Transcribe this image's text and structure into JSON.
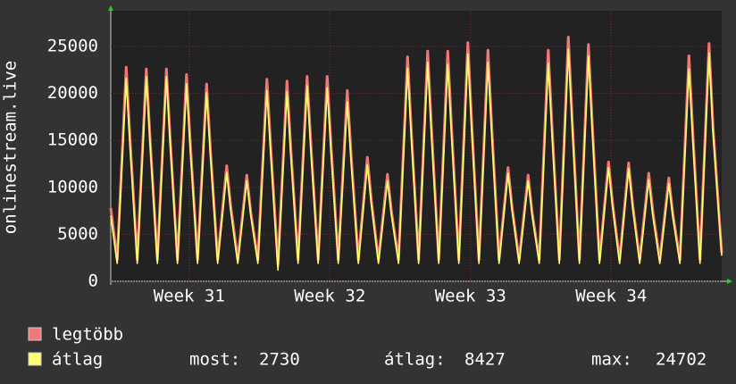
{
  "chart_data": {
    "type": "line",
    "y_label": "onlinestream.live",
    "xlim": [
      0,
      30.4
    ],
    "ylim": [
      0,
      28800
    ],
    "yticks": [
      0,
      5000,
      10000,
      15000,
      20000,
      25000
    ],
    "xticks": [
      {
        "value": 3.9,
        "label": "Week 31"
      },
      {
        "value": 10.9,
        "label": "Week 32"
      },
      {
        "value": 17.9,
        "label": "Week 33"
      },
      {
        "value": 24.9,
        "label": "Week 34"
      }
    ],
    "grid": true,
    "x": [
      0,
      0.32,
      0.77,
      0.97,
      1.32,
      1.77,
      1.97,
      2.32,
      2.77,
      2.97,
      3.32,
      3.77,
      3.97,
      4.32,
      4.77,
      4.97,
      5.32,
      5.77,
      5.97,
      6.32,
      6.77,
      6.97,
      7.32,
      7.77,
      7.97,
      8.32,
      8.77,
      8.97,
      9.32,
      9.77,
      9.97,
      10.32,
      10.77,
      10.97,
      11.32,
      11.77,
      11.97,
      12.32,
      12.77,
      12.97,
      13.32,
      13.77,
      13.97,
      14.32,
      14.77,
      14.97,
      15.32,
      15.77,
      15.97,
      16.32,
      16.77,
      16.97,
      17.32,
      17.77,
      17.97,
      18.32,
      18.77,
      18.97,
      19.32,
      19.77,
      19.97,
      20.32,
      20.77,
      20.97,
      21.32,
      21.77,
      21.97,
      22.32,
      22.77,
      22.97,
      23.32,
      23.77,
      23.97,
      24.32,
      24.77,
      24.97,
      25.32,
      25.77,
      25.97,
      26.32,
      26.77,
      26.97,
      27.32,
      27.77,
      27.97,
      28.32,
      28.77,
      28.97,
      29.32,
      29.77,
      29.97,
      30.4
    ],
    "series": [
      {
        "name": "legtöbb",
        "color": "#f07878",
        "values": [
          7800,
          2300,
          22800,
          14800,
          2300,
          22600,
          14700,
          2300,
          22600,
          14700,
          2300,
          22000,
          14300,
          2300,
          21000,
          13700,
          2300,
          12300,
          8000,
          2300,
          11300,
          7300,
          2300,
          21500,
          14000,
          1800,
          21300,
          13800,
          2300,
          21800,
          14200,
          2300,
          21800,
          14200,
          2300,
          20300,
          13200,
          2300,
          13200,
          8600,
          2300,
          11400,
          7400,
          2300,
          23900,
          15500,
          2300,
          24500,
          15900,
          2300,
          24500,
          15900,
          2300,
          25400,
          16500,
          2300,
          24600,
          16000,
          2300,
          12100,
          7900,
          2300,
          11300,
          7300,
          2300,
          24600,
          16000,
          2300,
          26000,
          16900,
          2300,
          25200,
          16400,
          2300,
          12700,
          8300,
          2300,
          12600,
          8200,
          2300,
          11500,
          7500,
          2300,
          11000,
          7200,
          2300,
          24000,
          15600,
          2300,
          25300,
          16400,
          3000
        ]
      },
      {
        "name": "átlag",
        "color": "#ffff70",
        "values": [
          7000,
          1900,
          21600,
          14000,
          1900,
          21800,
          14200,
          1900,
          21800,
          14200,
          1900,
          21000,
          13700,
          1900,
          20100,
          13100,
          1900,
          11600,
          7500,
          1900,
          10700,
          7000,
          1900,
          20300,
          13200,
          1200,
          20200,
          13100,
          1900,
          20800,
          13500,
          1900,
          20600,
          13400,
          1900,
          19100,
          12400,
          1900,
          12400,
          8100,
          1900,
          10700,
          7000,
          1900,
          22700,
          14800,
          1900,
          23300,
          15100,
          1900,
          23100,
          15000,
          1900,
          24200,
          15700,
          1900,
          23300,
          15100,
          1900,
          11500,
          7500,
          1900,
          10700,
          7000,
          1900,
          23200,
          15100,
          1900,
          24700,
          16100,
          1900,
          24000,
          15600,
          1900,
          12100,
          7900,
          1900,
          12000,
          7800,
          1900,
          10800,
          7000,
          1900,
          10400,
          6800,
          1900,
          22600,
          14700,
          1900,
          24300,
          15800,
          2730
        ]
      }
    ],
    "stats": [
      {
        "label": "most:",
        "value": 2730
      },
      {
        "label": "átlag:",
        "value": 8427
      },
      {
        "label": "max:",
        "value": 24702
      }
    ]
  }
}
